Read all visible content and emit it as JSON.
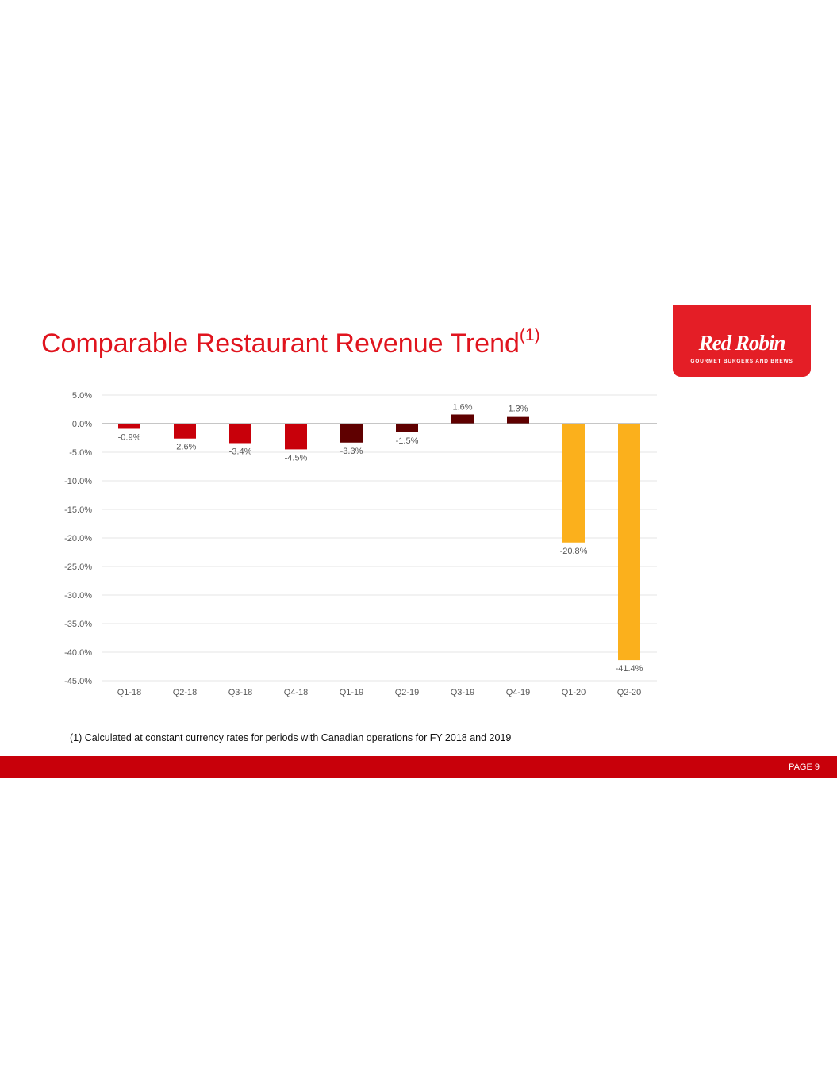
{
  "slide": {
    "title": "Comparable Restaurant Revenue Trend",
    "title_superscript": "(1)",
    "footnote": "(1) Calculated at constant currency rates for periods with Canadian operations for FY 2018 and 2019",
    "page_label": "PAGE 9"
  },
  "logo": {
    "wordmark": "Red Robin",
    "tagline": "GOURMET BURGERS AND BREWS"
  },
  "colors": {
    "title": "#e0141e",
    "fy2018_bars": "#c8000a",
    "fy2019_bars": "#5f0000",
    "fy2020_bars": "#fbb01c",
    "footer_bar": "#c8000a"
  },
  "chart_data": {
    "type": "bar",
    "categories": [
      "Q1-18",
      "Q2-18",
      "Q3-18",
      "Q4-18",
      "Q1-19",
      "Q2-19",
      "Q3-19",
      "Q4-19",
      "Q1-20",
      "Q2-20"
    ],
    "values": [
      -0.9,
      -2.6,
      -3.4,
      -4.5,
      -3.3,
      -1.5,
      1.6,
      1.3,
      -20.8,
      -41.4
    ],
    "data_labels": [
      "-0.9%",
      "-2.6%",
      "-3.4%",
      "-4.5%",
      "-3.3%",
      "-1.5%",
      "1.6%",
      "1.3%",
      "-20.8%",
      "-41.4%"
    ],
    "bar_colors": [
      "#c8000a",
      "#c8000a",
      "#c8000a",
      "#c8000a",
      "#5f0000",
      "#5f0000",
      "#5f0000",
      "#5f0000",
      "#fbb01c",
      "#fbb01c"
    ],
    "ylim": [
      -45,
      5
    ],
    "y_ticks": [
      5,
      0,
      -5,
      -10,
      -15,
      -20,
      -25,
      -30,
      -35,
      -40,
      -45
    ],
    "y_tick_labels": [
      "5.0%",
      "0.0%",
      "-5.0%",
      "-10.0%",
      "-15.0%",
      "-20.0%",
      "-25.0%",
      "-30.0%",
      "-35.0%",
      "-40.0%",
      "-45.0%"
    ],
    "grid": true,
    "legend": false
  }
}
